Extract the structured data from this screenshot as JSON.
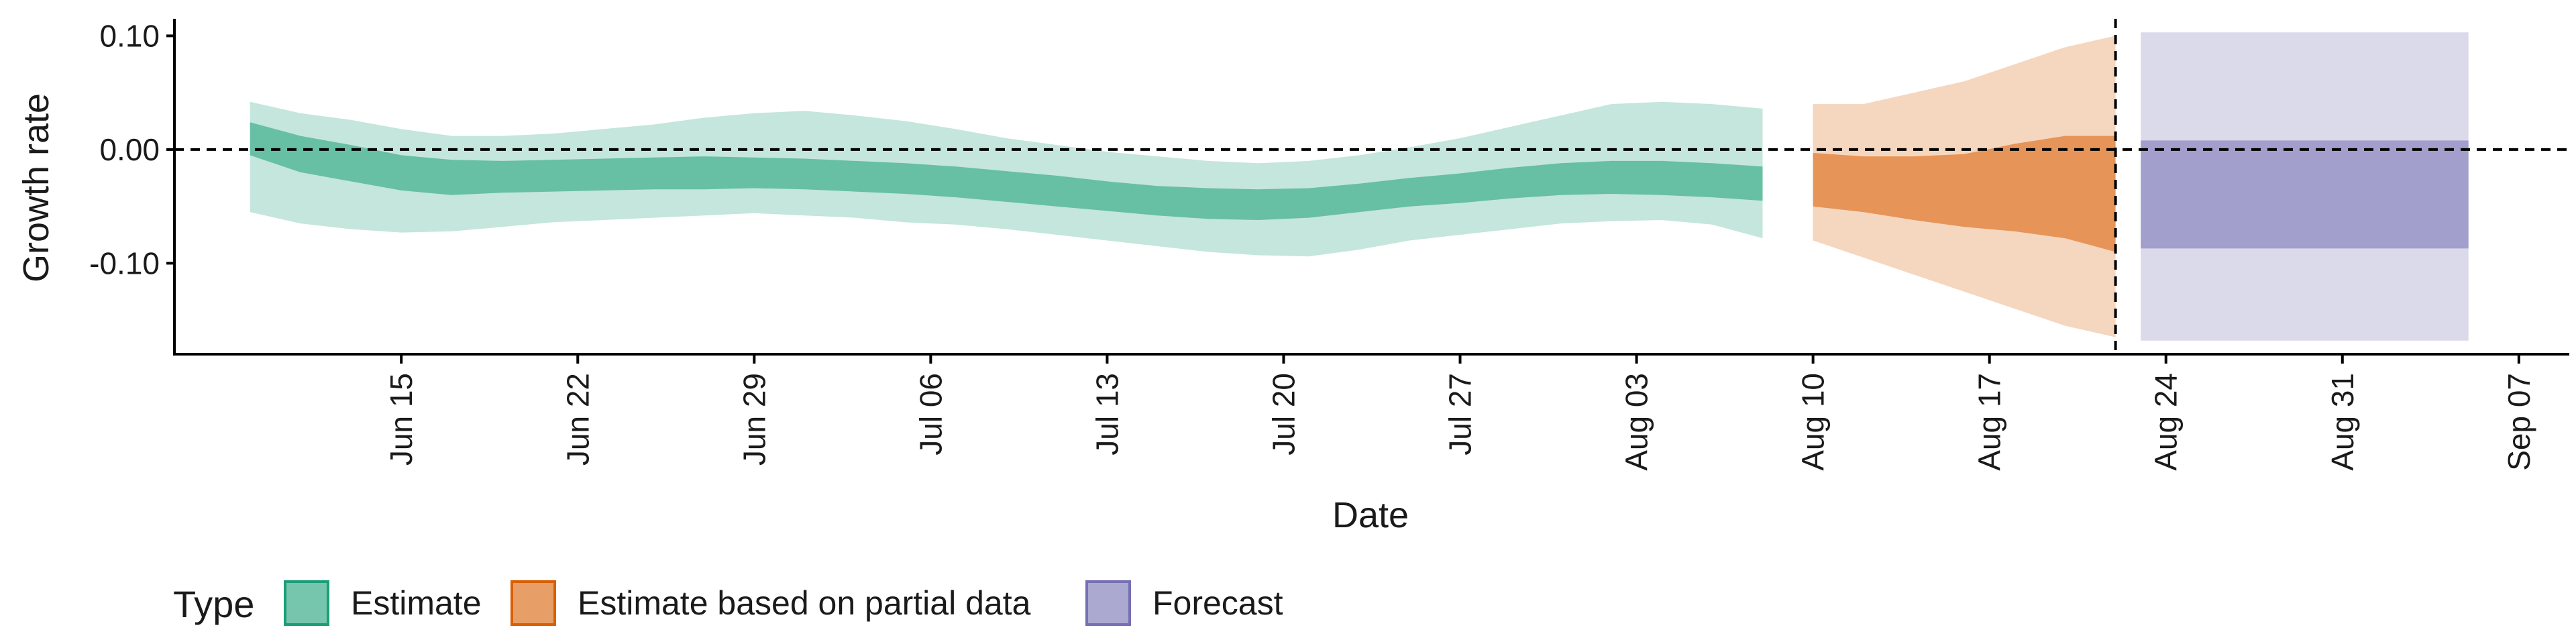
{
  "chart_data": {
    "type": "area",
    "xlabel": "Date",
    "ylabel": "Growth rate",
    "ylim": [
      -0.18,
      0.115
    ],
    "xlim": [
      "2020-06-06",
      "2020-09-09"
    ],
    "y_ticks": [
      0.1,
      0.0,
      -0.1
    ],
    "y_tick_labels": [
      "0.10",
      "0.00",
      "-0.10"
    ],
    "x_ticks": [
      "2020-06-15",
      "2020-06-22",
      "2020-06-29",
      "2020-07-06",
      "2020-07-13",
      "2020-07-20",
      "2020-07-27",
      "2020-08-03",
      "2020-08-10",
      "2020-08-17",
      "2020-08-24",
      "2020-08-31",
      "2020-09-07"
    ],
    "x_tick_labels": [
      "Jun 15",
      "Jun 22",
      "Jun 29",
      "Jul 06",
      "Jul 13",
      "Jul 20",
      "Jul 27",
      "Aug 03",
      "Aug 10",
      "Aug 17",
      "Aug 24",
      "Aug 31",
      "Sep 07"
    ],
    "reference_lines": {
      "horizontal_y": 0.0,
      "vertical_date": "2020-08-22"
    },
    "legend": {
      "title": "Type",
      "position": "bottom-left"
    },
    "series": [
      {
        "name": "Estimate",
        "color": "#1b9e77",
        "x": [
          "2020-06-09",
          "2020-06-11",
          "2020-06-13",
          "2020-06-15",
          "2020-06-17",
          "2020-06-19",
          "2020-06-21",
          "2020-06-23",
          "2020-06-25",
          "2020-06-27",
          "2020-06-29",
          "2020-07-01",
          "2020-07-03",
          "2020-07-05",
          "2020-07-07",
          "2020-07-09",
          "2020-07-11",
          "2020-07-13",
          "2020-07-15",
          "2020-07-17",
          "2020-07-19",
          "2020-07-21",
          "2020-07-23",
          "2020-07-25",
          "2020-07-27",
          "2020-07-29",
          "2020-07-31",
          "2020-08-02",
          "2020-08-04",
          "2020-08-06",
          "2020-08-08"
        ],
        "lower_90": [
          -0.055,
          -0.065,
          -0.07,
          -0.073,
          -0.072,
          -0.068,
          -0.064,
          -0.062,
          -0.06,
          -0.058,
          -0.056,
          -0.058,
          -0.06,
          -0.064,
          -0.066,
          -0.07,
          -0.075,
          -0.08,
          -0.085,
          -0.09,
          -0.093,
          -0.094,
          -0.088,
          -0.08,
          -0.075,
          -0.07,
          -0.065,
          -0.063,
          -0.062,
          -0.066,
          -0.078
        ],
        "lower_50": [
          -0.005,
          -0.02,
          -0.028,
          -0.036,
          -0.04,
          -0.038,
          -0.037,
          -0.036,
          -0.035,
          -0.035,
          -0.034,
          -0.035,
          -0.037,
          -0.039,
          -0.042,
          -0.046,
          -0.05,
          -0.054,
          -0.058,
          -0.061,
          -0.062,
          -0.06,
          -0.055,
          -0.05,
          -0.047,
          -0.043,
          -0.04,
          -0.039,
          -0.04,
          -0.042,
          -0.045
        ],
        "median": [
          0.008,
          -0.004,
          -0.014,
          -0.022,
          -0.026,
          -0.025,
          -0.024,
          -0.023,
          -0.022,
          -0.022,
          -0.022,
          -0.023,
          -0.025,
          -0.027,
          -0.03,
          -0.034,
          -0.038,
          -0.042,
          -0.046,
          -0.048,
          -0.049,
          -0.047,
          -0.042,
          -0.037,
          -0.034,
          -0.03,
          -0.027,
          -0.026,
          -0.027,
          -0.029,
          -0.032
        ],
        "upper_50": [
          0.024,
          0.012,
          0.004,
          -0.005,
          -0.009,
          -0.01,
          -0.009,
          -0.008,
          -0.007,
          -0.006,
          -0.007,
          -0.008,
          -0.01,
          -0.012,
          -0.015,
          -0.019,
          -0.023,
          -0.028,
          -0.032,
          -0.034,
          -0.035,
          -0.034,
          -0.03,
          -0.025,
          -0.021,
          -0.016,
          -0.012,
          -0.01,
          -0.01,
          -0.012,
          -0.015
        ],
        "upper_90": [
          0.042,
          0.032,
          0.026,
          0.018,
          0.012,
          0.012,
          0.014,
          0.018,
          0.022,
          0.028,
          0.032,
          0.034,
          0.03,
          0.025,
          0.018,
          0.01,
          0.004,
          -0.002,
          -0.006,
          -0.01,
          -0.012,
          -0.01,
          -0.005,
          0.002,
          0.01,
          0.02,
          0.03,
          0.04,
          0.042,
          0.04,
          0.036
        ]
      },
      {
        "name": "Estimate based on partial data",
        "color": "#d95f02",
        "x": [
          "2020-08-10",
          "2020-08-12",
          "2020-08-14",
          "2020-08-16",
          "2020-08-18",
          "2020-08-20",
          "2020-08-22"
        ],
        "lower_90": [
          -0.08,
          -0.095,
          -0.11,
          -0.125,
          -0.14,
          -0.155,
          -0.165
        ],
        "lower_50": [
          -0.05,
          -0.055,
          -0.062,
          -0.068,
          -0.072,
          -0.078,
          -0.09
        ],
        "median": [
          -0.028,
          -0.032,
          -0.036,
          -0.04,
          -0.04,
          -0.038,
          -0.04
        ],
        "upper_50": [
          -0.003,
          -0.006,
          -0.006,
          -0.004,
          0.005,
          0.012,
          0.012
        ],
        "upper_90": [
          0.04,
          0.04,
          0.05,
          0.06,
          0.075,
          0.09,
          0.1
        ]
      },
      {
        "name": "Forecast",
        "color": "#7570b3",
        "x": [
          "2020-08-23",
          "2020-09-05"
        ],
        "lower_90": [
          -0.168,
          -0.168
        ],
        "lower_50": [
          -0.087,
          -0.087
        ],
        "median": [
          -0.04,
          -0.04
        ],
        "upper_50": [
          0.008,
          0.008
        ],
        "upper_90": [
          0.103,
          0.103
        ]
      }
    ]
  }
}
